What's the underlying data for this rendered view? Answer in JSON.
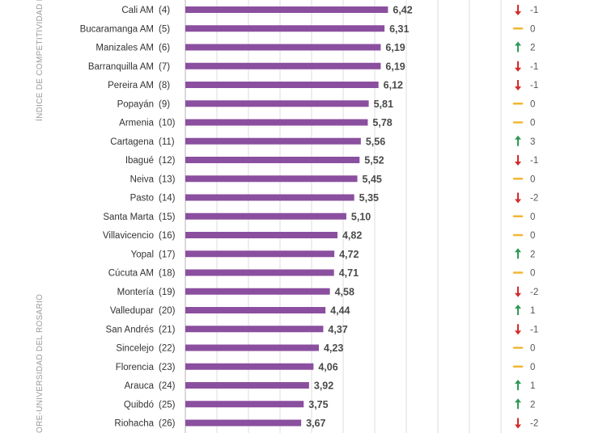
{
  "side_labels": {
    "index_axis": "ÍNDICE DE COMPETITIVIDAD D",
    "source": "ORE-UNIVERSIDAD DEL ROSARIO"
  },
  "colors": {
    "bar": "#8b4f9f",
    "up": "#2e9a56",
    "down": "#d42a2a",
    "same": "#f2b632",
    "grid": "#dcdcdc"
  },
  "chart_data": {
    "type": "bar",
    "orientation": "horizontal",
    "xlim": [
      0,
      10
    ],
    "grid": true,
    "categories": [
      "Cali AM",
      "Bucaramanga AM",
      "Manizales AM",
      "Barranquilla AM",
      "Pereira AM",
      "Popayán",
      "Armenia",
      "Cartagena",
      "Ibagué",
      "Neiva",
      "Pasto",
      "Santa Marta",
      "Villavicencio",
      "Yopal",
      "Cúcuta AM",
      "Montería",
      "Valledupar",
      "San Andrés",
      "Sincelejo",
      "Florencia",
      "Arauca",
      "Quibdó",
      "Riohacha"
    ],
    "ranks": [
      "(4)",
      "(5)",
      "(6)",
      "(7)",
      "(8)",
      "(9)",
      "(10)",
      "(11)",
      "(12)",
      "(13)",
      "(14)",
      "(15)",
      "(16)",
      "(17)",
      "(18)",
      "(19)",
      "(20)",
      "(21)",
      "(22)",
      "(23)",
      "(24)",
      "(25)",
      "(26)"
    ],
    "values": [
      6.42,
      6.31,
      6.19,
      6.19,
      6.12,
      5.81,
      5.78,
      5.56,
      5.52,
      5.45,
      5.35,
      5.1,
      4.82,
      4.72,
      4.71,
      4.58,
      4.44,
      4.37,
      4.23,
      4.06,
      3.92,
      3.75,
      3.67
    ],
    "value_labels": [
      "6,42",
      "6,31",
      "6,19",
      "6,19",
      "6,12",
      "5,81",
      "5,78",
      "5,56",
      "5,52",
      "5,45",
      "5,35",
      "5,10",
      "4,82",
      "4,72",
      "4,71",
      "4,58",
      "4,44",
      "4,37",
      "4,23",
      "4,06",
      "3,92",
      "3,75",
      "3,67"
    ],
    "change_direction": [
      "down",
      "same",
      "up",
      "down",
      "down",
      "same",
      "same",
      "up",
      "down",
      "same",
      "down",
      "same",
      "same",
      "up",
      "same",
      "down",
      "up",
      "down",
      "same",
      "same",
      "up",
      "up",
      "down"
    ],
    "change_labels": [
      "-1",
      "0",
      "2",
      "-1",
      "-1",
      "0",
      "0",
      "3",
      "-1",
      "0",
      "-2",
      "0",
      "0",
      "2",
      "0",
      "-2",
      "1",
      "-1",
      "0",
      "0",
      "1",
      "2",
      "-2"
    ]
  }
}
